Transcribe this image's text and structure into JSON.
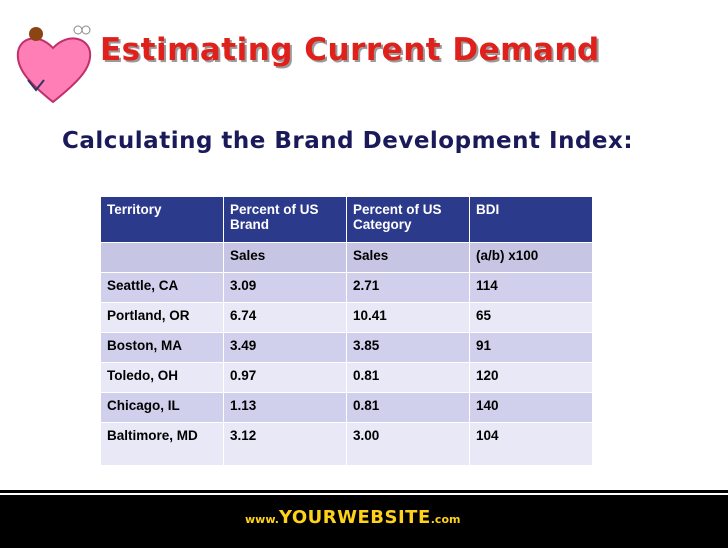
{
  "title": "Estimating Current Demand",
  "subtitle": "Calculating the Brand Development Index:",
  "table": {
    "header": [
      [
        "Territory",
        "Percent of US Brand",
        "Percent of US Category",
        "BDI"
      ],
      [
        null,
        "Sales",
        "Sales",
        "(a/b) x100"
      ]
    ],
    "rows": [
      [
        "Seattle, CA",
        "3.09",
        "2.71",
        "114"
      ],
      [
        "Portland, OR",
        "6.74",
        "10.41",
        "65"
      ],
      [
        "Boston, MA",
        "3.49",
        "3.85",
        "91"
      ],
      [
        "Toledo, OH",
        "0.97",
        "0.81",
        "120"
      ],
      [
        "Chicago, IL",
        "1.13",
        "0.81",
        "140"
      ],
      [
        "Baltimore, MD",
        "3.12",
        "3.00",
        "104"
      ]
    ]
  },
  "footer": {
    "prefix": "www.",
    "name": "YOURWEBSITE",
    "suffix": ".com"
  }
}
